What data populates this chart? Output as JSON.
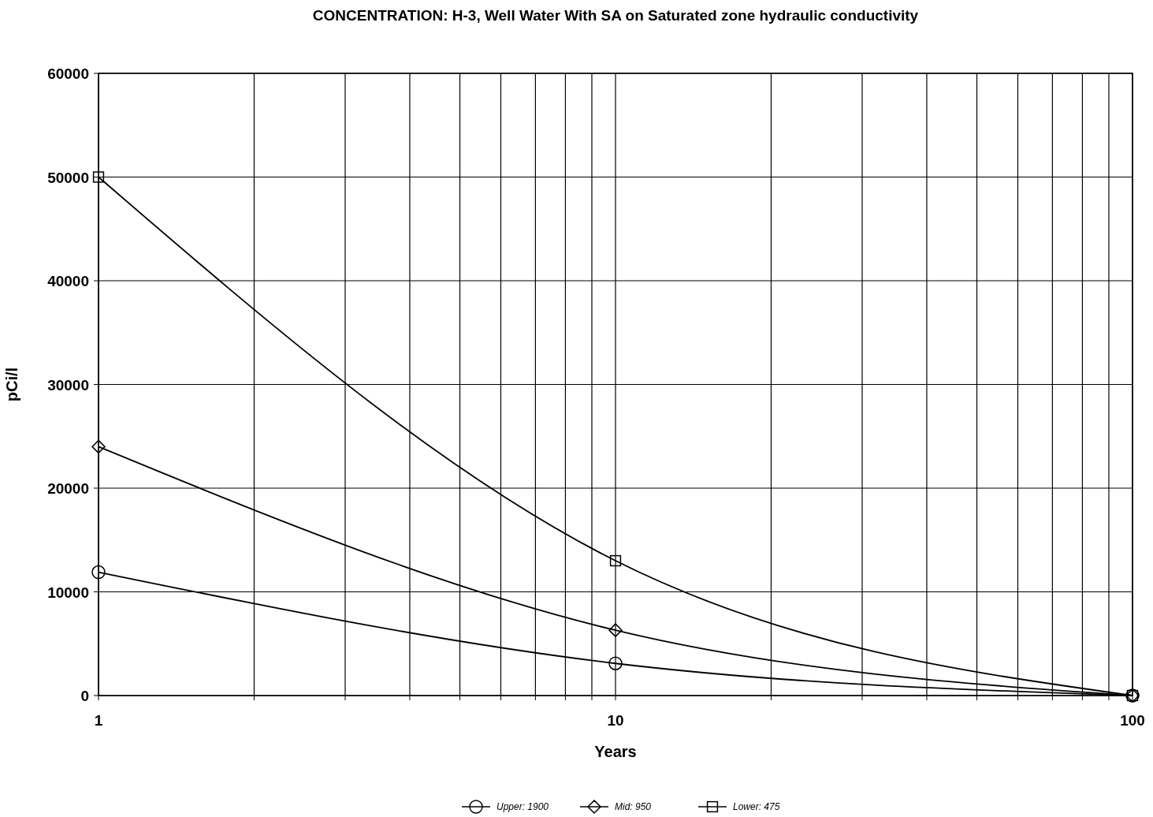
{
  "chart_data": {
    "type": "line",
    "title": "CONCENTRATION: H-3, Well Water With SA on Saturated zone hydraulic conductivity",
    "xlabel": "Years",
    "ylabel": "pCi/l",
    "log": "x",
    "x": [
      1,
      10,
      100
    ],
    "series": [
      {
        "name": "Upper: 1900",
        "color": "#000000",
        "marker": "circle",
        "values": [
          11900,
          3100,
          0
        ]
      },
      {
        "name": "Mid: 950",
        "color": "#000000",
        "marker": "diamond",
        "values": [
          24000,
          6300,
          0
        ]
      },
      {
        "name": "Lower: 475",
        "color": "#000000",
        "marker": "square",
        "values": [
          50000,
          13000,
          0
        ]
      }
    ],
    "xlim": [
      1,
      100
    ],
    "xticks": [
      1,
      {
        "value": 2,
        "label": null
      },
      {
        "value": 3,
        "label": null
      },
      {
        "value": 4,
        "label": null
      },
      {
        "value": 5,
        "label": null
      },
      {
        "value": 6,
        "label": null
      },
      {
        "value": 7,
        "label": null
      },
      {
        "value": 8,
        "label": null
      },
      {
        "value": 9,
        "label": null
      },
      10,
      {
        "value": 20,
        "label": null
      },
      {
        "value": 30,
        "label": null
      },
      {
        "value": 40,
        "label": null
      },
      {
        "value": 50,
        "label": null
      },
      {
        "value": 60,
        "label": null
      },
      {
        "value": 70,
        "label": null
      },
      {
        "value": 80,
        "label": null
      },
      {
        "value": 90,
        "label": null
      },
      100
    ],
    "ylim": [
      0,
      60000
    ],
    "yticks": [
      0,
      10000,
      20000,
      30000,
      40000,
      50000,
      60000
    ],
    "grid": true,
    "legend": "bottom",
    "line_style": "solid"
  }
}
